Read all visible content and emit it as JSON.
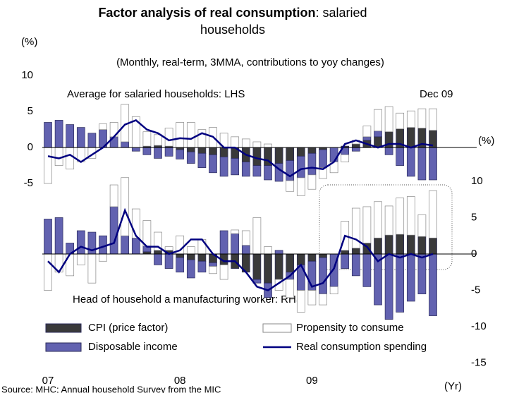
{
  "chart_data": [
    {
      "type": "bar",
      "title": "Factor analysis of real consumption",
      "title_rest": ": salaried households",
      "subtitle": "(Monthly, real-term, 3MMA, contributions to yoy changes)",
      "y_unit": "(%)",
      "x_unit": "(Yr)",
      "annotation": "Average for salaried households: LHS",
      "date_label": "Dec 09",
      "source": "Source: MHC; Annual household Survey from the MIC",
      "categories": [
        "07",
        null,
        null,
        null,
        null,
        null,
        null,
        null,
        null,
        null,
        null,
        null,
        "08",
        null,
        null,
        null,
        null,
        null,
        null,
        null,
        null,
        null,
        null,
        null,
        "09",
        null,
        null,
        null,
        null,
        null,
        null,
        null,
        null,
        null,
        null,
        null
      ],
      "ylim": [
        -31.5,
        11.5
      ],
      "yticks": [
        10,
        5,
        0,
        -5
      ],
      "series": [
        {
          "name": "CPI (price factor)",
          "color": "#3a3a3a",
          "kind": "bar",
          "values": [
            0,
            0,
            0,
            0,
            0,
            0,
            0,
            0,
            0,
            0.2,
            0.3,
            0.2,
            -0.3,
            -0.6,
            -0.8,
            -1.0,
            -1.3,
            -1.5,
            -2.0,
            -2.5,
            -2.5,
            -2.2,
            -1.8,
            -1.2,
            -0.8,
            -0.3,
            0,
            0.2,
            0.5,
            1.0,
            1.5,
            2.2,
            2.6,
            2.8,
            2.7,
            2.4
          ]
        },
        {
          "name": "Disposable income",
          "color": "#6262b0",
          "kind": "bar",
          "values": [
            3.5,
            3.8,
            3.2,
            2.8,
            2.0,
            2.5,
            1.5,
            0.8,
            -0.5,
            -1.0,
            -1.5,
            -1.2,
            -1.3,
            -1.6,
            -2.0,
            -2.5,
            -2.7,
            -2.3,
            -2.0,
            -1.5,
            -2.0,
            -2.5,
            -2.8,
            -3.0,
            -3.0,
            -2.5,
            -2.0,
            -1.0,
            -0.5,
            0.5,
            0.8,
            -1.0,
            -2.5,
            -4.0,
            -4.5,
            -4.5
          ]
        },
        {
          "name": "Propensity to consume",
          "color": "#ffffff",
          "kind": "bar",
          "values": [
            -5,
            -2.5,
            -3,
            -2,
            -1.5,
            0.8,
            2,
            5.2,
            4.3,
            2,
            1.5,
            2.5,
            3.5,
            3.5,
            2.5,
            2.8,
            2,
            1.5,
            1.2,
            0.8,
            0.5,
            0,
            -1.5,
            -2.5,
            -2,
            -1.5,
            -1.5,
            -1,
            0.5,
            1.5,
            3,
            3.5,
            2.2,
            2.3,
            2.7,
            3.0
          ]
        },
        {
          "name": "Real consumption spending",
          "color": "#000080",
          "kind": "line",
          "values": [
            -1.2,
            -1.5,
            -1,
            -2,
            -1,
            0,
            1.5,
            3.2,
            3.8,
            2.5,
            2,
            1,
            1.3,
            1.2,
            2,
            1.5,
            0,
            0,
            -1,
            -1.5,
            -1.8,
            -3,
            -4,
            -3,
            -2.8,
            -3,
            -2,
            0.5,
            1,
            0.5,
            0,
            0.5,
            0.5,
            0,
            0.5,
            0.3
          ]
        }
      ]
    },
    {
      "type": "bar",
      "annotation": "Head of household a manufacturing worker: RHS",
      "y2_unit": "(%)",
      "y2lim": [
        -16.5,
        26
      ],
      "y2ticks": [
        10,
        5,
        0,
        -5,
        -10,
        -15
      ],
      "series": [
        {
          "color": "#3a3a3a",
          "kind": "bar",
          "axis": "y2",
          "values": [
            0,
            0,
            0,
            0,
            0,
            0,
            0,
            0,
            0,
            0.3,
            0.5,
            0.5,
            -0.5,
            -0.8,
            -1,
            -1.2,
            -1.5,
            -2,
            -2.5,
            -3.5,
            -4,
            -3.5,
            -2.5,
            -1.5,
            -1,
            -0.5,
            0,
            0.5,
            0.8,
            1.5,
            2.2,
            2.6,
            2.7,
            2.6,
            2.4,
            2.2
          ]
        },
        {
          "color": "#6262b0",
          "kind": "bar",
          "axis": "y2",
          "values": [
            4.8,
            5,
            1.5,
            3.2,
            3,
            2.5,
            6.5,
            2.5,
            2.2,
            0.8,
            -1.5,
            -2,
            -2,
            -2.5,
            -1.5,
            -0.5,
            3.2,
            2.8,
            1.2,
            -0.5,
            -2,
            0.5,
            -1,
            -3.5,
            -4,
            -5,
            -4.5,
            -2,
            -3,
            -4.5,
            -7,
            -9,
            -8,
            -6.5,
            -5.5,
            -8.5
          ]
        },
        {
          "color": "#ffffff",
          "kind": "bar",
          "axis": "y2",
          "values": [
            -5,
            -2.5,
            -3,
            -1.5,
            -4,
            -1,
            3,
            8,
            4,
            3.5,
            2.5,
            0.5,
            2.5,
            1,
            2,
            -1,
            -2,
            0.5,
            2,
            5,
            1,
            -1.5,
            -2.5,
            -3,
            -2,
            -1.5,
            -1,
            4,
            5.5,
            5,
            5,
            4,
            5,
            5.3,
            3.0,
            6.5
          ]
        },
        {
          "color": "#000080",
          "kind": "line",
          "axis": "y2",
          "values": [
            -1,
            -2.5,
            0,
            1,
            0.5,
            1,
            1.5,
            6,
            2.5,
            1,
            1,
            0,
            0.5,
            2,
            2,
            0,
            -1,
            -1,
            -2.5,
            -4.5,
            -5,
            -4,
            -3,
            -1.5,
            -4.5,
            -4,
            -2,
            2.5,
            2,
            1,
            -1,
            0,
            -0.5,
            0,
            -0.5,
            0
          ]
        }
      ]
    }
  ]
}
